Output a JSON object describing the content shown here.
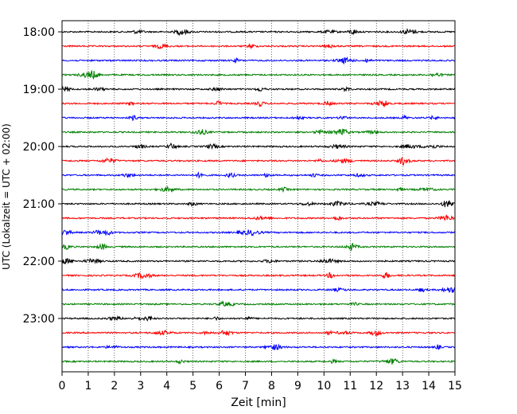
{
  "chart_data": {
    "type": "line",
    "title": "",
    "xlabel": "Zeit  [min]",
    "ylabel": "UTC (Lokalzeit = UTC + 02:00)",
    "xlim": [
      0,
      15
    ],
    "x_ticks": [
      "0",
      "1",
      "2",
      "3",
      "4",
      "5",
      "6",
      "7",
      "8",
      "9",
      "10",
      "11",
      "12",
      "13",
      "14",
      "15"
    ],
    "y_ticks": [
      "18:00",
      "19:00",
      "20:00",
      "21:00",
      "22:00",
      "23:00"
    ],
    "vertical_grid": "dotted",
    "trace_start": "18:00",
    "trace_interval_min": 15,
    "trace_count": 24,
    "trace_colors": [
      "#000000",
      "#ff0000",
      "#0000ff",
      "#008000"
    ],
    "representation": "helicorder seismogram traces, one 15-minute line per row"
  }
}
